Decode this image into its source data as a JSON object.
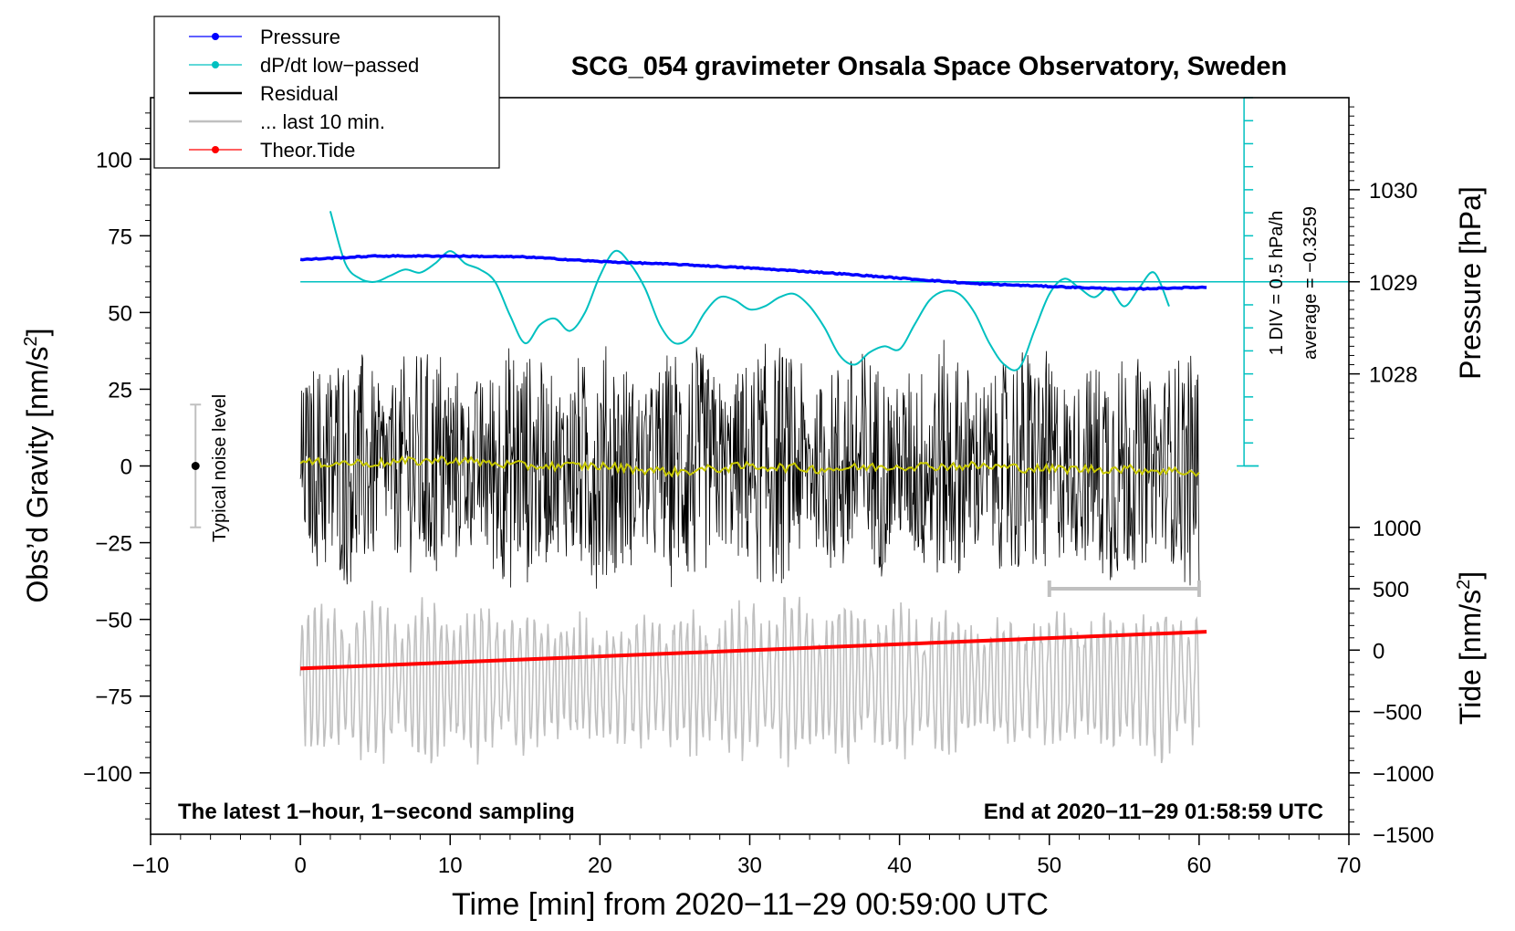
{
  "chart_data": {
    "type": "line",
    "title": "SCG_054 gravimeter Onsala Space Observatory, Sweden",
    "xlabel": "Time [min] from 2020−11−29 00:59:00 UTC",
    "ylabel_left": "Obs’d Gravity [nm/s",
    "ylabel_left_sup": "2",
    "ylabel_left_end": "]",
    "ylabel_right_top": "Pressure [hPa]",
    "ylabel_right_bottom": "Tide [nm/s",
    "ylabel_right_bottom_sup": "2",
    "ylabel_right_bottom_end": "]",
    "xlim": [
      -10,
      70
    ],
    "ylim": [
      -120,
      120
    ],
    "x_ticks": [
      -10,
      0,
      10,
      20,
      30,
      40,
      50,
      60,
      70
    ],
    "x_tick_labels": [
      "−10",
      "0",
      "10",
      "20",
      "30",
      "40",
      "50",
      "60",
      "70"
    ],
    "y_ticks": [
      -100,
      -75,
      -50,
      -25,
      0,
      25,
      50,
      75,
      100
    ],
    "y_tick_labels": [
      "−100",
      "−75",
      "−50",
      "−25",
      "0",
      "25",
      "50",
      "75",
      "100"
    ],
    "pressure_axis": {
      "ticks": [
        1028,
        1029,
        1030
      ],
      "tick_labels": [
        "1028",
        "1029",
        "1030"
      ],
      "gravity_equiv": [
        30,
        60,
        90
      ]
    },
    "tide_axis": {
      "ticks": [
        -1500,
        -1000,
        -500,
        0,
        500,
        1000
      ],
      "tick_labels": [
        "−1500",
        "−1000",
        "−500",
        "0",
        "500",
        "1000"
      ],
      "gravity_equiv": [
        -120,
        -100,
        -80,
        -60,
        -40,
        -20
      ]
    },
    "legend": {
      "position": "top-left",
      "entries": [
        {
          "label": "Pressure",
          "color": "#0000ff",
          "marker": true
        },
        {
          "label": "dP/dt low−passed",
          "color": "#00c0c0",
          "marker": true
        },
        {
          "label": "Residual",
          "color": "#000000",
          "marker": false
        },
        {
          "label": "... last 10 min.",
          "color": "#c0c0c0",
          "marker": false
        },
        {
          "label": "Theor.Tide",
          "color": "#ff0000",
          "marker": true
        }
      ]
    },
    "series": [
      {
        "name": "Pressure",
        "color": "#0000ff",
        "x": [
          0,
          5,
          10,
          15,
          20,
          25,
          30,
          35,
          40,
          45,
          50,
          55,
          60
        ],
        "y": [
          1029.24,
          1029.28,
          1029.28,
          1029.27,
          1029.22,
          1029.19,
          1029.15,
          1029.1,
          1029.04,
          1028.98,
          1028.95,
          1028.92,
          1028.94
        ]
      },
      {
        "name": "dP/dt low−passed",
        "color": "#00c0c0",
        "x": [
          2,
          3,
          4,
          5,
          6,
          7,
          8,
          9,
          10,
          11,
          12,
          13,
          14,
          15,
          16,
          17,
          18,
          19,
          20,
          21,
          22,
          23,
          24,
          25,
          26,
          27,
          28,
          29,
          30,
          31,
          32,
          33,
          34,
          35,
          36,
          37,
          38,
          39,
          40,
          41,
          42,
          43,
          44,
          45,
          46,
          47,
          48,
          49,
          50,
          51,
          52,
          53,
          54,
          55,
          56,
          57,
          58
        ],
        "y": [
          83,
          66,
          61,
          60,
          62,
          64,
          63,
          66,
          70,
          66,
          64,
          60,
          49,
          40,
          46,
          48,
          44,
          50,
          62,
          70,
          66,
          58,
          46,
          40,
          42,
          50,
          55,
          54,
          51,
          52,
          55,
          56,
          52,
          45,
          36,
          33,
          37,
          39,
          38,
          46,
          54,
          57,
          56,
          50,
          40,
          33,
          32,
          44,
          56,
          61,
          58,
          55,
          58,
          52,
          58,
          63,
          52
        ]
      },
      {
        "name": "Residual",
        "color": "#000000",
        "note": "1-second sampled noise, envelope roughly ±40 nm/s² around 0",
        "x_range": [
          0,
          60
        ],
        "amplitude": 40
      },
      {
        "name": "Residual smoothed",
        "color": "#c8c800",
        "x": [
          0,
          5,
          10,
          15,
          20,
          25,
          30,
          35,
          40,
          45,
          50,
          55,
          60
        ],
        "y": [
          1,
          1,
          2,
          0,
          0,
          -2,
          0,
          -1,
          0,
          0,
          -1,
          -1,
          -2
        ]
      },
      {
        "name": "... last 10 min.",
        "color": "#c0c0c0",
        "note": "Last-10-minute residual trace, oscillating about −70 nm/s² with amplitude ~±25",
        "x_range": [
          0,
          60
        ],
        "center": -70,
        "amplitude": 25
      },
      {
        "name": "Theor.Tide",
        "color": "#ff0000",
        "x": [
          0,
          60.5
        ],
        "y_tide": [
          -150,
          150
        ]
      }
    ],
    "dpdt_reference": {
      "baseline_gravity": 60,
      "scale_top_gravity": 120,
      "scale_bottom_gravity": 0,
      "x": 63,
      "label_div": "1 DIV = 0.5 hPa/h",
      "label_avg": "average = −0.3259"
    },
    "noise_level": {
      "label": "Typical noise level",
      "x": -7,
      "center": 0,
      "half_range": 20
    },
    "last_10min_bar": {
      "x": [
        50,
        60
      ],
      "y": -40
    },
    "annotations": {
      "bottom_left": "The latest 1−hour, 1−second sampling",
      "bottom_right": "End at 2020−11−29 01:58:59 UTC"
    }
  }
}
